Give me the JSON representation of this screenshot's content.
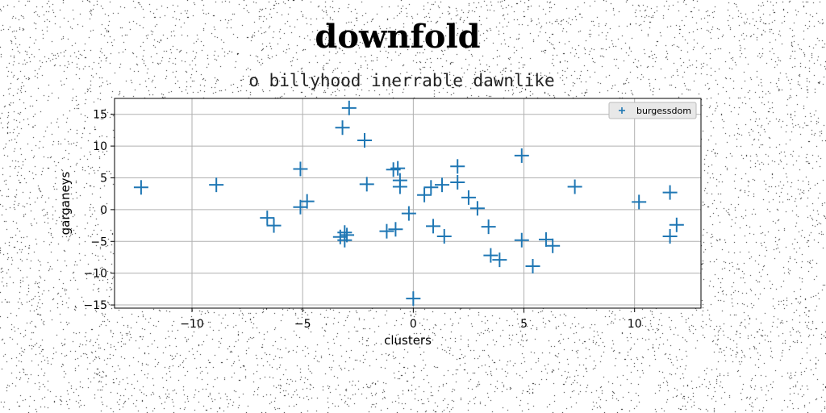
{
  "title": "downfold",
  "subtitle": "o billyhood inerrable dawnlike",
  "colors": {
    "marker": "#1f77b4",
    "grid": "#b0b0b0",
    "background": "#ffffff",
    "noise": "#000000"
  },
  "chart_data": {
    "type": "scatter",
    "title": "downfold",
    "subtitle": "o billyhood inerrable dawnlike",
    "xlabel": "clusters",
    "ylabel": "garganeys",
    "xlim": [
      -13.5,
      13
    ],
    "ylim": [
      -15.5,
      17.5
    ],
    "xticks": [
      -10,
      -5,
      0,
      5,
      10
    ],
    "yticks": [
      -15,
      -10,
      -5,
      0,
      5,
      10,
      15
    ],
    "grid": true,
    "legend_position": "top-right",
    "marker": "+",
    "series": [
      {
        "name": "burgessdom",
        "points": [
          [
            -12.3,
            3.5
          ],
          [
            -8.9,
            3.9
          ],
          [
            -6.6,
            -1.3
          ],
          [
            -6.3,
            -2.5
          ],
          [
            -5.1,
            6.4
          ],
          [
            -5.1,
            0.4
          ],
          [
            -4.8,
            1.3
          ],
          [
            -3.2,
            12.9
          ],
          [
            -2.9,
            16.0
          ],
          [
            -2.2,
            10.9
          ],
          [
            -2.1,
            4.0
          ],
          [
            -3.3,
            -4.3
          ],
          [
            -3.1,
            -3.6
          ],
          [
            -3.0,
            -4.0
          ],
          [
            -3.1,
            -4.8
          ],
          [
            -1.2,
            -3.4
          ],
          [
            -0.8,
            -3.1
          ],
          [
            -0.9,
            6.3
          ],
          [
            -0.7,
            6.5
          ],
          [
            -0.6,
            4.6
          ],
          [
            -0.6,
            3.6
          ],
          [
            -0.2,
            -0.6
          ],
          [
            0.0,
            -14.0
          ],
          [
            0.5,
            2.3
          ],
          [
            0.8,
            3.5
          ],
          [
            0.9,
            -2.6
          ],
          [
            1.3,
            3.9
          ],
          [
            1.4,
            -4.2
          ],
          [
            2.0,
            6.8
          ],
          [
            2.0,
            4.3
          ],
          [
            2.5,
            1.9
          ],
          [
            2.9,
            0.2
          ],
          [
            3.4,
            -2.7
          ],
          [
            3.5,
            -7.2
          ],
          [
            3.9,
            -7.9
          ],
          [
            4.9,
            8.5
          ],
          [
            4.9,
            -4.8
          ],
          [
            5.4,
            -8.9
          ],
          [
            6.0,
            -4.7
          ],
          [
            6.3,
            -5.7
          ],
          [
            7.3,
            3.6
          ],
          [
            10.2,
            1.2
          ],
          [
            11.6,
            2.7
          ],
          [
            11.6,
            -4.2
          ],
          [
            11.9,
            -2.4
          ]
        ]
      }
    ]
  }
}
